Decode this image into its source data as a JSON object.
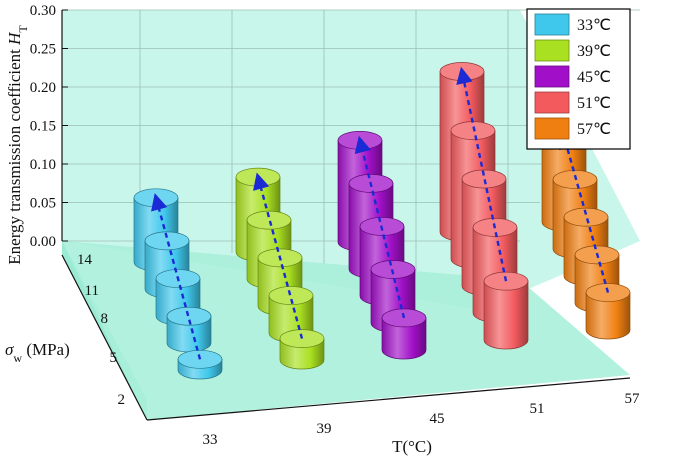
{
  "chart_data": {
    "type": "bar",
    "subtype": "3d-cylinder",
    "x": {
      "label": "T(°C)",
      "categories": [
        "33",
        "39",
        "45",
        "51",
        "57"
      ]
    },
    "y": {
      "label": "σw (MPa)",
      "label_parts": {
        "main": "σ",
        "sub": "w",
        "unit": " (MPa)"
      },
      "categories": [
        "2",
        "5",
        "8",
        "11",
        "14"
      ]
    },
    "z": {
      "label": "Energy transmission coefficient HT",
      "label_parts": {
        "main": "Energy transmission coefficient ",
        "italic": "H",
        "sub": "T"
      },
      "ticks": [
        "0.00",
        "0.05",
        "0.10",
        "0.15",
        "0.20",
        "0.25",
        "0.30"
      ],
      "range": [
        0,
        0.3
      ]
    },
    "series": [
      {
        "name": "33℃",
        "color": "#3fc8ec",
        "values": [
          0.02,
          0.05,
          0.07,
          0.09,
          0.12
        ]
      },
      {
        "name": "39℃",
        "color": "#a9e021",
        "values": [
          0.04,
          0.07,
          0.09,
          0.11,
          0.14
        ]
      },
      {
        "name": "45℃",
        "color": "#a110c8",
        "values": [
          0.06,
          0.1,
          0.13,
          0.16,
          0.19
        ]
      },
      {
        "name": "51℃",
        "color": "#f25a5e",
        "values": [
          0.11,
          0.16,
          0.2,
          0.24,
          0.3
        ]
      },
      {
        "name": "57℃",
        "color": "#f07f12",
        "values": [
          0.07,
          0.09,
          0.11,
          0.13,
          0.16
        ]
      }
    ],
    "legend_position": "top-right",
    "trend_arrows": "dashed blue arrows along increasing σw",
    "grid": true
  }
}
